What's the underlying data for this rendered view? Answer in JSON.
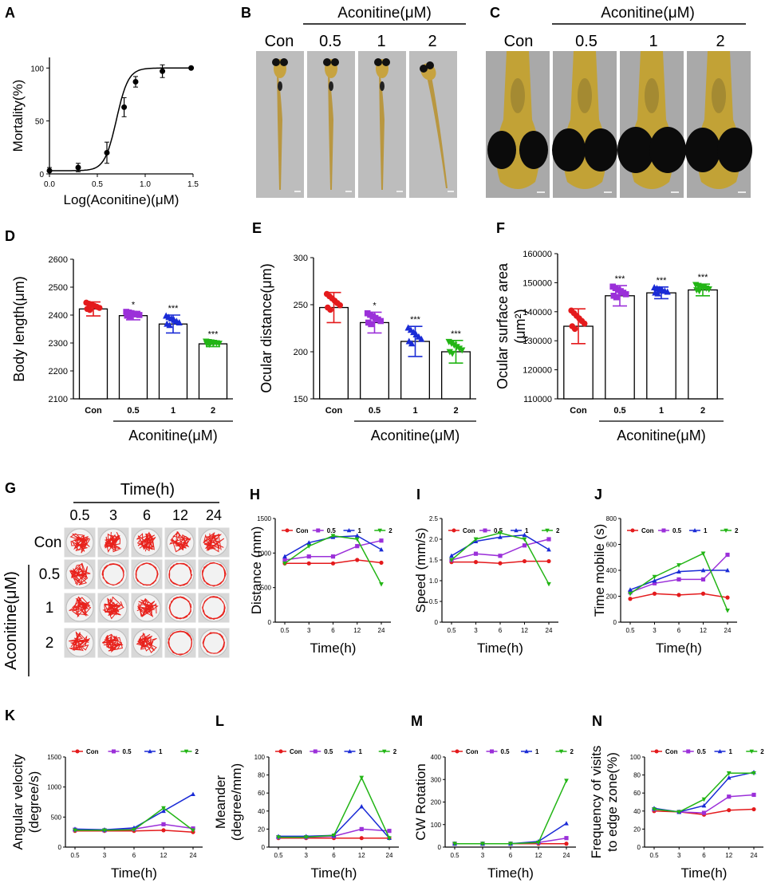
{
  "colors": {
    "con": "#e41a1c",
    "c05": "#9b30d9",
    "c1": "#1a2bd6",
    "c2": "#22b515",
    "fish": "#b8902a",
    "track": "#e8221c"
  },
  "text": {
    "aconitine": "Aconitine(μM)",
    "ylab_D": "Body length(μm)",
    "ylab_E": "Ocular distance(μm)",
    "ylab_F1": "Ocular surface area",
    "ylab_F2": "(μm²)",
    "time_header": "Time(h)",
    "aconitine_vertical": "Aconitine(μM)"
  },
  "panels": {
    "A": "A",
    "B": "B",
    "C": "C",
    "D": "D",
    "E": "E",
    "F": "F",
    "G": "G",
    "H": "H",
    "I": "I",
    "J": "J",
    "K": "K",
    "L": "L",
    "M": "M",
    "N": "N"
  },
  "photo_labels": {
    "B": [
      "Con",
      "0.5",
      "1",
      "2"
    ],
    "C": [
      "Con",
      "0.5",
      "1",
      "2"
    ]
  },
  "track_grid": {
    "times": [
      "0.5",
      "3",
      "6",
      "12",
      "24"
    ],
    "rows": [
      "Con",
      "0.5",
      "1",
      "2"
    ]
  },
  "chart_data": [
    {
      "id": "A",
      "type": "scatter",
      "xlabel": "Log(Aconitine)(μM)",
      "ylabel": "Mortality(%)",
      "xlim": [
        0,
        1.5
      ],
      "ylim": [
        0,
        110
      ],
      "xticks": [
        "0.0",
        "0.5",
        "1.0",
        "1.5"
      ],
      "yticks": [
        "0",
        "50",
        "100"
      ],
      "x": [
        0,
        0.3,
        0.6,
        0.78,
        0.9,
        1.18,
        1.48
      ],
      "y": [
        3,
        6,
        20,
        63,
        87,
        97,
        100
      ],
      "err": [
        3,
        4,
        10,
        9,
        5,
        6,
        0
      ]
    },
    {
      "id": "D",
      "type": "bar",
      "ylabel": "Body length(μm)",
      "ylim": [
        2100,
        2600
      ],
      "yticks": [
        "2100",
        "2200",
        "2300",
        "2400",
        "2500",
        "2600"
      ],
      "categories": [
        "Con",
        "0.5",
        "1",
        "2"
      ],
      "values": [
        2422,
        2398,
        2368,
        2297
      ],
      "err": [
        25,
        15,
        32,
        10
      ],
      "sig": [
        "",
        "*",
        "***",
        "***"
      ],
      "xlabel": "Aconitine(μM)"
    },
    {
      "id": "E",
      "type": "bar",
      "ylabel": "Ocular distance(μm)",
      "ylim": [
        150,
        300
      ],
      "yticks": [
        "150",
        "200",
        "250",
        "300"
      ],
      "categories": [
        "Con",
        "0.5",
        "1",
        "2"
      ],
      "values": [
        247,
        231,
        211,
        200
      ],
      "err": [
        16,
        11,
        16,
        12
      ],
      "sig": [
        "",
        "*",
        "***",
        "***"
      ],
      "xlabel": "Aconitine(μM)"
    },
    {
      "id": "F",
      "type": "bar",
      "ylabel": "Ocular surface area (μm²)",
      "ylim": [
        110000,
        160000
      ],
      "yticks": [
        "110000",
        "120000",
        "130000",
        "140000",
        "150000",
        "160000"
      ],
      "categories": [
        "Con",
        "0.5",
        "1",
        "2"
      ],
      "values": [
        135000,
        145500,
        146500,
        147500
      ],
      "err": [
        6000,
        3500,
        2000,
        2000
      ],
      "sig": [
        "",
        "***",
        "***",
        "***"
      ],
      "xlabel": "Aconitine(μM)"
    },
    {
      "id": "H",
      "type": "line",
      "xlabel": "Time(h)",
      "ylabel": "Distance (mm)",
      "ylim": [
        0,
        1500
      ],
      "yticks": [
        "0",
        "500",
        "1000",
        "1500"
      ],
      "x": [
        "0.5",
        "3",
        "6",
        "12",
        "24"
      ],
      "series": [
        {
          "name": "Con",
          "values": [
            850,
            850,
            850,
            900,
            860
          ]
        },
        {
          "name": "0.5",
          "values": [
            900,
            950,
            950,
            1100,
            1180
          ]
        },
        {
          "name": "1",
          "values": [
            950,
            1150,
            1230,
            1250,
            1050
          ]
        },
        {
          "name": "2",
          "values": [
            850,
            1100,
            1250,
            1200,
            550
          ]
        }
      ]
    },
    {
      "id": "I",
      "type": "line",
      "xlabel": "Time(h)",
      "ylabel": "Speed (mm/s)",
      "ylim": [
        0,
        2.5
      ],
      "yticks": [
        "0",
        "0.5",
        "1.0",
        "1.5",
        "2.0",
        "2.5"
      ],
      "x": [
        "0.5",
        "3",
        "6",
        "12",
        "24"
      ],
      "series": [
        {
          "name": "Con",
          "values": [
            1.45,
            1.45,
            1.42,
            1.47,
            1.47
          ]
        },
        {
          "name": "0.5",
          "values": [
            1.5,
            1.65,
            1.6,
            1.85,
            2.0
          ]
        },
        {
          "name": "1",
          "values": [
            1.6,
            1.95,
            2.05,
            2.1,
            1.75
          ]
        },
        {
          "name": "2",
          "values": [
            1.5,
            2.0,
            2.15,
            2.0,
            0.92
          ]
        }
      ]
    },
    {
      "id": "J",
      "type": "line",
      "xlabel": "Time(h)",
      "ylabel": "Time mobile (s)",
      "ylim": [
        0,
        800
      ],
      "yticks": [
        "0",
        "200",
        "400",
        "600",
        "800"
      ],
      "x": [
        "0.5",
        "3",
        "6",
        "12",
        "24"
      ],
      "series": [
        {
          "name": "Con",
          "values": [
            180,
            220,
            210,
            220,
            190
          ]
        },
        {
          "name": "0.5",
          "values": [
            230,
            300,
            330,
            330,
            520
          ]
        },
        {
          "name": "1",
          "values": [
            250,
            320,
            390,
            400,
            400
          ]
        },
        {
          "name": "2",
          "values": [
            220,
            350,
            440,
            530,
            90
          ]
        }
      ]
    },
    {
      "id": "K",
      "type": "line",
      "xlabel": "Time(h)",
      "ylabel": "Angular velocity (degree/s)",
      "ylim": [
        0,
        1500
      ],
      "yticks": [
        "0",
        "500",
        "1000",
        "1500"
      ],
      "x": [
        "0.5",
        "3",
        "6",
        "12",
        "24"
      ],
      "series": [
        {
          "name": "Con",
          "values": [
            270,
            270,
            270,
            280,
            250
          ]
        },
        {
          "name": "0.5",
          "values": [
            290,
            280,
            300,
            380,
            310
          ]
        },
        {
          "name": "1",
          "values": [
            300,
            290,
            320,
            600,
            880
          ]
        },
        {
          "name": "2",
          "values": [
            280,
            280,
            290,
            650,
            280
          ]
        }
      ]
    },
    {
      "id": "L",
      "type": "line",
      "xlabel": "Time(h)",
      "ylabel": "Meander (degree/mm)",
      "ylim": [
        0,
        100
      ],
      "yticks": [
        "0",
        "20",
        "40",
        "60",
        "80",
        "100"
      ],
      "x": [
        "0.5",
        "3",
        "6",
        "12",
        "24"
      ],
      "series": [
        {
          "name": "Con",
          "values": [
            10,
            10,
            10,
            10,
            10
          ]
        },
        {
          "name": "0.5",
          "values": [
            11,
            11,
            12,
            20,
            18
          ]
        },
        {
          "name": "1",
          "values": [
            12,
            12,
            13,
            45,
            10
          ]
        },
        {
          "name": "2",
          "values": [
            11,
            11,
            13,
            77,
            10
          ]
        }
      ]
    },
    {
      "id": "M",
      "type": "line",
      "xlabel": "Time(h)",
      "ylabel": "CW Rotation",
      "ylim": [
        0,
        400
      ],
      "yticks": [
        "0",
        "100",
        "200",
        "300",
        "400"
      ],
      "x": [
        "0.5",
        "3",
        "6",
        "12",
        "24"
      ],
      "series": [
        {
          "name": "Con",
          "values": [
            15,
            15,
            15,
            15,
            15
          ]
        },
        {
          "name": "0.5",
          "values": [
            15,
            15,
            15,
            20,
            40
          ]
        },
        {
          "name": "1",
          "values": [
            15,
            15,
            15,
            25,
            105
          ]
        },
        {
          "name": "2",
          "values": [
            15,
            15,
            15,
            20,
            295
          ]
        }
      ]
    },
    {
      "id": "N",
      "type": "line",
      "xlabel": "Time(h)",
      "ylabel": "Frequency of visits to edge zone(%)",
      "ylim": [
        0,
        100
      ],
      "yticks": [
        "0",
        "20",
        "40",
        "60",
        "80",
        "100"
      ],
      "x": [
        "0.5",
        "3",
        "6",
        "12",
        "24"
      ],
      "series": [
        {
          "name": "Con",
          "values": [
            40,
            39,
            36,
            41,
            42
          ]
        },
        {
          "name": "0.5",
          "values": [
            42,
            39,
            38,
            56,
            58
          ]
        },
        {
          "name": "1",
          "values": [
            43,
            39,
            46,
            77,
            83
          ]
        },
        {
          "name": "2",
          "values": [
            42,
            39,
            53,
            82,
            82
          ]
        }
      ]
    }
  ]
}
